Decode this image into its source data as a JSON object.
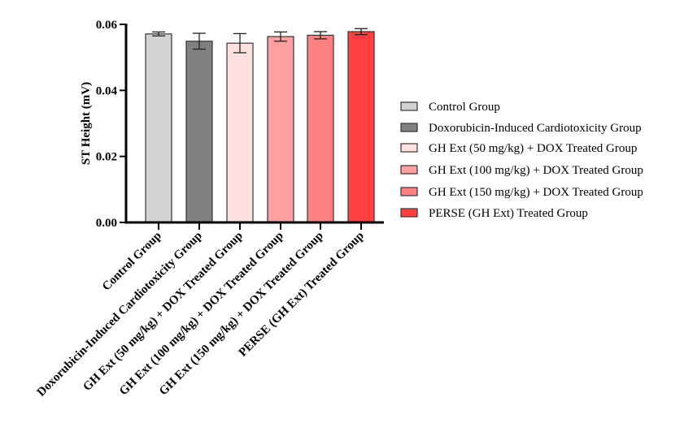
{
  "chart_data": {
    "type": "bar",
    "title": "",
    "xlabel": "",
    "ylabel": "ST Height (mV)",
    "ylim": [
      0,
      0.06
    ],
    "yticks": [
      "0.00",
      "0.02",
      "0.04",
      "0.06"
    ],
    "ytick_values": [
      0,
      0.02,
      0.04,
      0.06
    ],
    "grid": false,
    "legend_position": "right",
    "categories": [
      "Control Group",
      "Doxorubicin-Induced Cardiotoxicity Group",
      "GH Ext (50 mg/kg) + DOX Treated Group",
      "GH Ext (100 mg/kg) + DOX Treated Group",
      "GH Ext (150 mg/kg) + DOX Treated Group",
      "PERSE (GH Ext) Treated Group"
    ],
    "values": [
      0.0571,
      0.0549,
      0.0543,
      0.0563,
      0.0567,
      0.0578
    ],
    "errors": [
      0.0006,
      0.0024,
      0.0029,
      0.0014,
      0.0011,
      0.0009
    ],
    "colors": [
      "#d3d3d3",
      "#808080",
      "#ffe0e0",
      "#ff9f9f",
      "#ff8080",
      "#ff4040"
    ]
  }
}
